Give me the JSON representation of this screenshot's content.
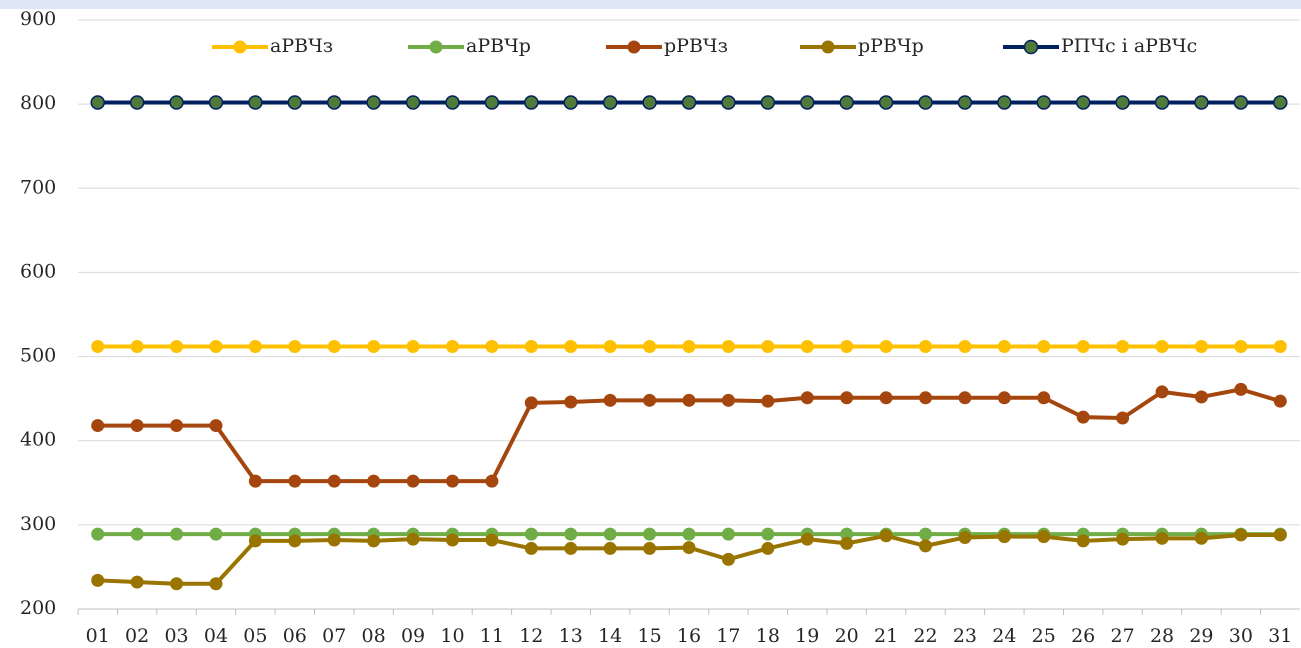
{
  "chart_data": {
    "type": "line",
    "categories": [
      "01",
      "02",
      "03",
      "04",
      "05",
      "06",
      "07",
      "08",
      "09",
      "10",
      "11",
      "12",
      "13",
      "14",
      "15",
      "16",
      "17",
      "18",
      "19",
      "20",
      "21",
      "22",
      "23",
      "24",
      "25",
      "26",
      "27",
      "28",
      "29",
      "30",
      "31"
    ],
    "ylim": [
      200,
      900
    ],
    "yticks": [
      200,
      300,
      400,
      500,
      600,
      700,
      800,
      900
    ],
    "grid": true,
    "series": [
      {
        "name": "аРВЧз",
        "color": "#ffc000",
        "values": [
          512,
          512,
          512,
          512,
          512,
          512,
          512,
          512,
          512,
          512,
          512,
          512,
          512,
          512,
          512,
          512,
          512,
          512,
          512,
          512,
          512,
          512,
          512,
          512,
          512,
          512,
          512,
          512,
          512,
          512,
          512
        ]
      },
      {
        "name": "аРВЧр",
        "color": "#70ad47",
        "values": [
          289,
          289,
          289,
          289,
          289,
          289,
          289,
          289,
          289,
          289,
          289,
          289,
          289,
          289,
          289,
          289,
          289,
          289,
          289,
          289,
          289,
          289,
          289,
          289,
          289,
          289,
          289,
          289,
          289,
          289,
          289
        ]
      },
      {
        "name": "рРВЧз",
        "color": "#a5460f",
        "values": [
          418,
          418,
          418,
          418,
          352,
          352,
          352,
          352,
          352,
          352,
          352,
          445,
          446,
          448,
          448,
          448,
          448,
          447,
          451,
          451,
          451,
          451,
          451,
          451,
          451,
          428,
          427,
          458,
          452,
          461,
          447
        ]
      },
      {
        "name": "рРВЧр",
        "color": "#9a7400",
        "values": [
          234,
          232,
          230,
          230,
          281,
          281,
          282,
          281,
          283,
          282,
          282,
          272,
          272,
          272,
          272,
          273,
          259,
          272,
          283,
          278,
          287,
          275,
          285,
          286,
          286,
          281,
          283,
          284,
          284,
          288,
          288
        ]
      },
      {
        "name": "РПЧс і аРВЧс",
        "color": "#002060",
        "marker_color": "#4f7a3a",
        "values": [
          802,
          802,
          802,
          802,
          802,
          802,
          802,
          802,
          802,
          802,
          802,
          802,
          802,
          802,
          802,
          802,
          802,
          802,
          802,
          802,
          802,
          802,
          802,
          802,
          802,
          802,
          802,
          802,
          802,
          802,
          802
        ]
      }
    ]
  }
}
